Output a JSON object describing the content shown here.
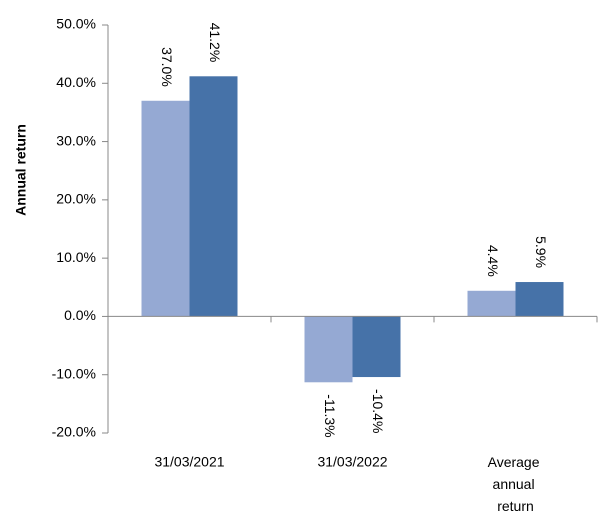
{
  "chart_data": {
    "type": "bar",
    "y_label": "Annual return",
    "categories": [
      "31/03/2021",
      "31/03/2022",
      "Average annual return"
    ],
    "series": [
      {
        "color": "#95a9d3",
        "values": [
          37.0,
          -11.3,
          4.4
        ],
        "value_labels": [
          "37.0%",
          "-11.3%",
          "4.4%"
        ]
      },
      {
        "color": "#4672a8",
        "values": [
          41.2,
          -10.4,
          5.9
        ],
        "value_labels": [
          "41.2%",
          "-10.4%",
          "5.9%"
        ]
      }
    ],
    "ylim": [
      -20,
      50
    ],
    "yticks": [
      {
        "value": -20,
        "label": "-20.0%"
      },
      {
        "value": -10,
        "label": "-10.0%"
      },
      {
        "value": 0,
        "label": "0.0%"
      },
      {
        "value": 10,
        "label": "10.0%"
      },
      {
        "value": 20,
        "label": "20.0%"
      },
      {
        "value": 30,
        "label": "30.0%"
      },
      {
        "value": 40,
        "label": "40.0%"
      },
      {
        "value": 50,
        "label": "50.0%"
      }
    ]
  }
}
